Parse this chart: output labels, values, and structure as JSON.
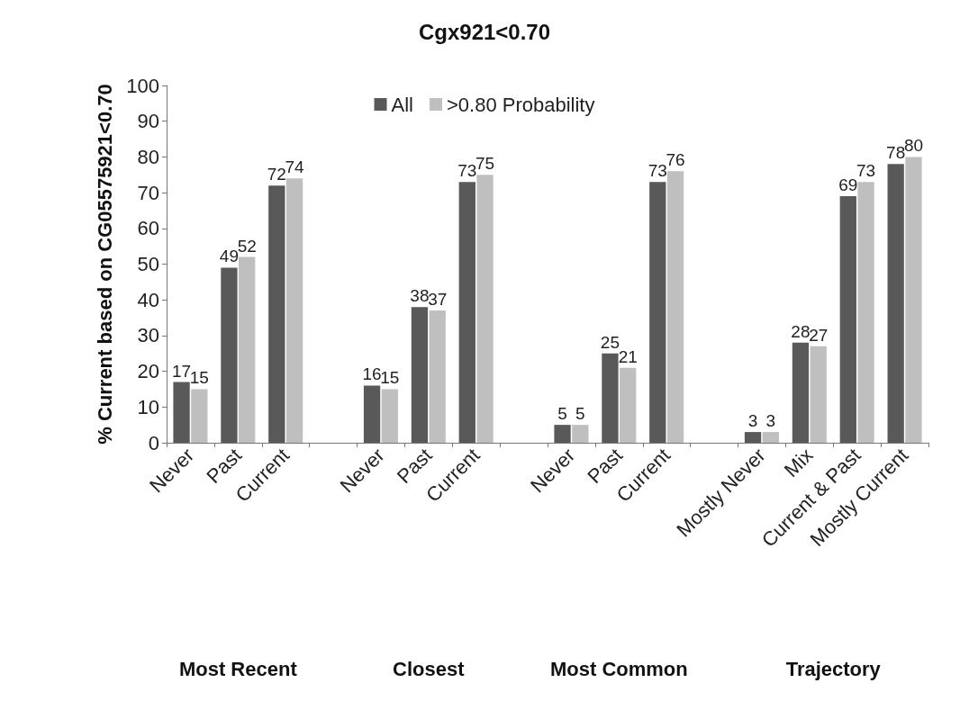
{
  "chart_data": {
    "type": "bar",
    "title": "Cgx921<0.70",
    "ylabel": "% Current based on CG05575921<0.70",
    "categories": [
      "Never",
      "Past",
      "Current",
      null,
      "Never",
      "Past",
      "Current",
      null,
      "Never",
      "Past",
      "Current",
      null,
      "Mostly Never",
      "Mix",
      "Current & Past",
      "Mostly Current"
    ],
    "series": [
      {
        "name": "All",
        "color": "#595959",
        "values": [
          17,
          49,
          72,
          null,
          16,
          38,
          73,
          null,
          5,
          25,
          73,
          null,
          3,
          28,
          69,
          78
        ]
      },
      {
        "name": ">0.80 Probability",
        "color": "#bfbfbf",
        "values": [
          15,
          52,
          74,
          null,
          15,
          37,
          75,
          null,
          5,
          21,
          76,
          null,
          3,
          27,
          73,
          80
        ]
      }
    ],
    "annotations": [
      "Most Recent",
      "Closest",
      "Most Common",
      "Trajectory"
    ],
    "ylim": [
      0,
      100
    ],
    "yticks": [
      0,
      10,
      20,
      30,
      40,
      50,
      60,
      70,
      80,
      90,
      100
    ],
    "grid": false,
    "legend": "top",
    "data_labels": true
  }
}
